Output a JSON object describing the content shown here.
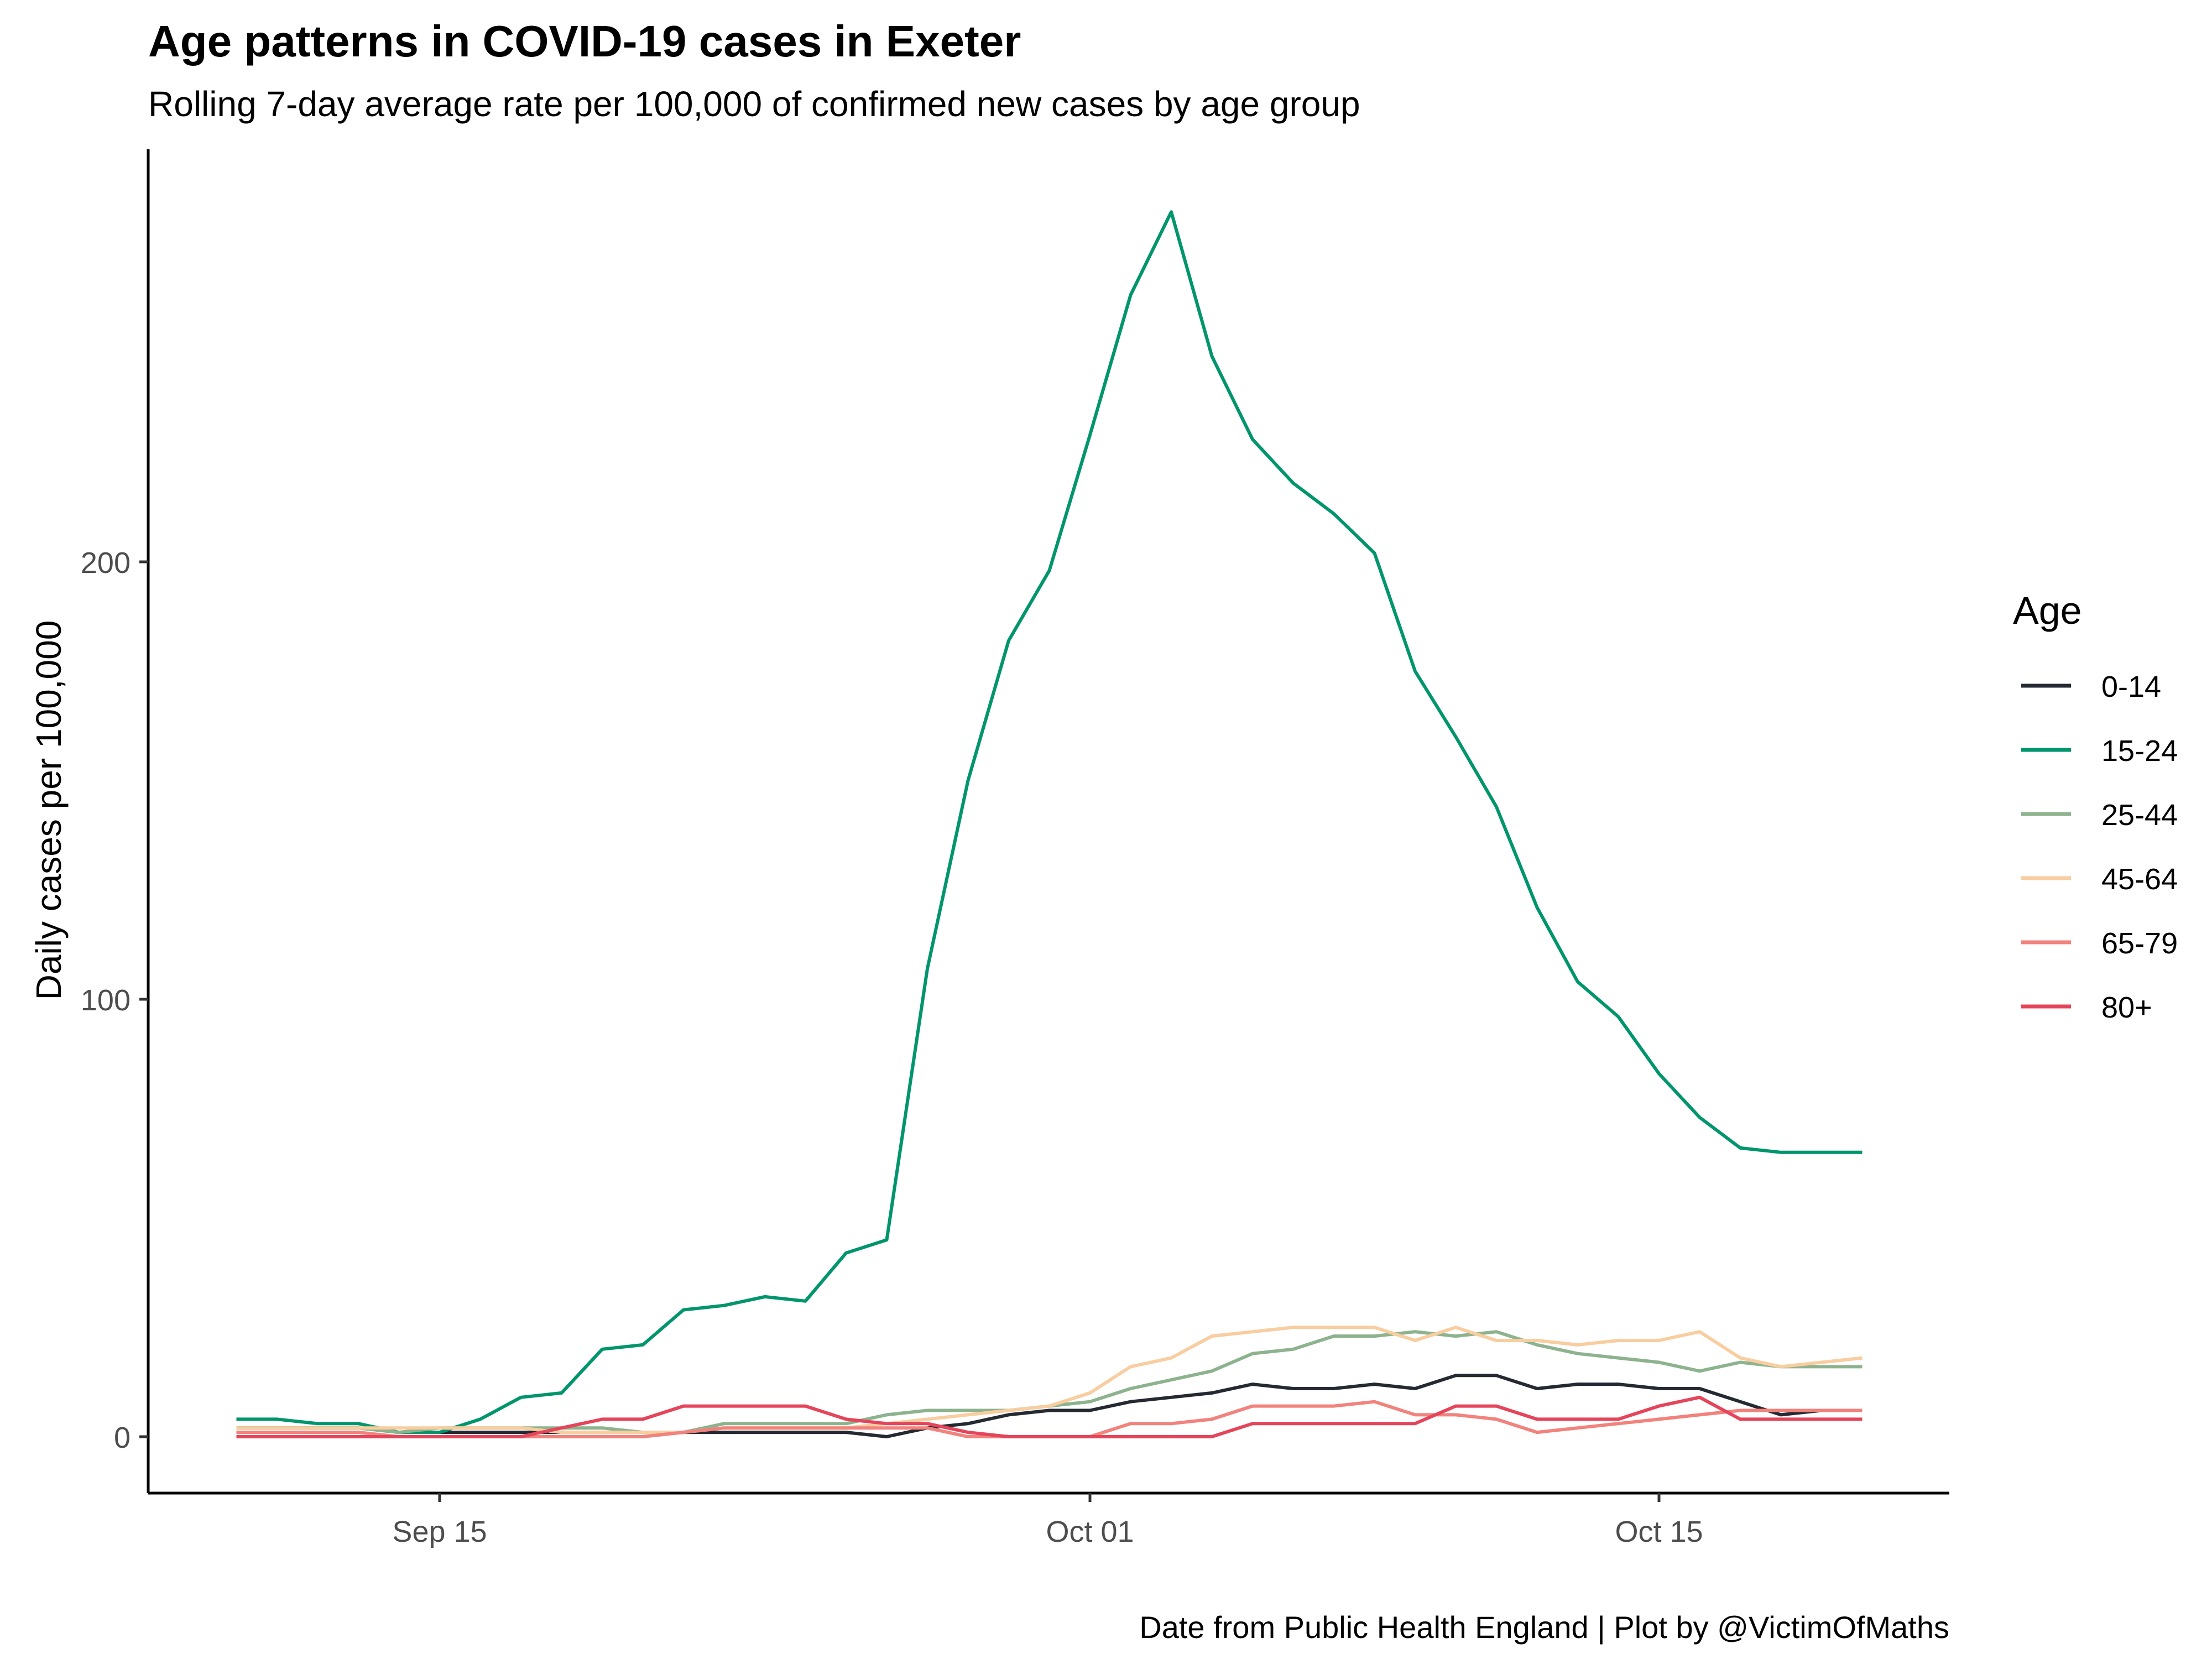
{
  "chart_data": {
    "type": "line",
    "title": "Age patterns in COVID-19 cases in Exeter",
    "subtitle": "Rolling 7-day average rate per 100,000 of confirmed new cases by age group",
    "xlabel": "",
    "ylabel": "Daily cases per 100,000",
    "caption": "Date from Public Health England | Plot by @VictimOfMaths",
    "x_start_day": 10,
    "x_step_days": 1,
    "xlim": [
      8.4,
      22.4
    ],
    "ylim": [
      -13.5,
      295
    ],
    "y_ticks": [
      0,
      100,
      200
    ],
    "y_tick_labels": [
      "0",
      "100",
      "200"
    ],
    "x_ticks": [
      15,
      31,
      45
    ],
    "x_tick_labels": [
      "Sep 15",
      "Oct 01",
      "Oct 15"
    ],
    "grid": false,
    "legend_title": "Age",
    "legend_position": "right",
    "series": [
      {
        "name": "0-14",
        "color": "#252a32",
        "values": [
          2,
          2,
          2,
          2,
          1,
          1,
          1,
          1,
          1,
          1,
          1,
          1,
          1,
          1,
          1,
          1,
          0,
          2,
          3,
          5,
          6,
          6,
          8,
          9,
          10,
          12,
          11,
          11,
          12,
          11,
          14,
          14,
          11,
          12,
          12,
          11,
          11,
          8,
          5,
          6,
          6
        ]
      },
      {
        "name": "15-24",
        "color": "#00956c",
        "values": [
          4,
          4,
          3,
          3,
          1,
          1,
          4,
          9,
          10,
          20,
          21,
          29,
          30,
          32,
          31,
          42,
          45,
          107,
          150,
          182,
          198,
          229,
          261,
          280,
          247,
          228,
          218,
          211,
          202,
          175,
          160,
          144,
          121,
          104,
          96,
          83,
          73,
          66,
          65,
          65,
          65
        ]
      },
      {
        "name": "25-44",
        "color": "#8db38e",
        "values": [
          2,
          2,
          2,
          2,
          1,
          2,
          2,
          2,
          2,
          2,
          1,
          1,
          3,
          3,
          3,
          3,
          5,
          6,
          6,
          6,
          7,
          8,
          11,
          13,
          15,
          19,
          20,
          23,
          23,
          24,
          23,
          24,
          21,
          19,
          18,
          17,
          15,
          17,
          16,
          16,
          16
        ]
      },
      {
        "name": "45-64",
        "color": "#f8cda0",
        "values": [
          2,
          2,
          2,
          2,
          2,
          2,
          2,
          2,
          1,
          1,
          1,
          1,
          2,
          2,
          2,
          2,
          3,
          4,
          5,
          6,
          7,
          10,
          16,
          18,
          23,
          24,
          25,
          25,
          25,
          22,
          25,
          22,
          22,
          21,
          22,
          22,
          24,
          18,
          16,
          17,
          18
        ]
      },
      {
        "name": "65-79",
        "color": "#f2827c",
        "values": [
          1,
          1,
          1,
          1,
          0,
          0,
          0,
          0,
          0,
          0,
          0,
          1,
          2,
          2,
          2,
          2,
          2,
          2,
          0,
          0,
          0,
          0,
          3,
          3,
          4,
          7,
          7,
          7,
          8,
          5,
          5,
          4,
          1,
          2,
          3,
          4,
          5,
          6,
          6,
          6,
          6
        ]
      },
      {
        "name": "80+",
        "color": "#e5455a",
        "values": [
          0,
          0,
          0,
          0,
          0,
          0,
          0,
          0,
          2,
          4,
          4,
          7,
          7,
          7,
          7,
          4,
          3,
          3,
          1,
          0,
          0,
          0,
          0,
          0,
          0,
          3,
          3,
          3,
          3,
          3,
          7,
          7,
          4,
          4,
          4,
          7,
          9,
          4,
          4,
          4,
          4
        ]
      }
    ]
  }
}
